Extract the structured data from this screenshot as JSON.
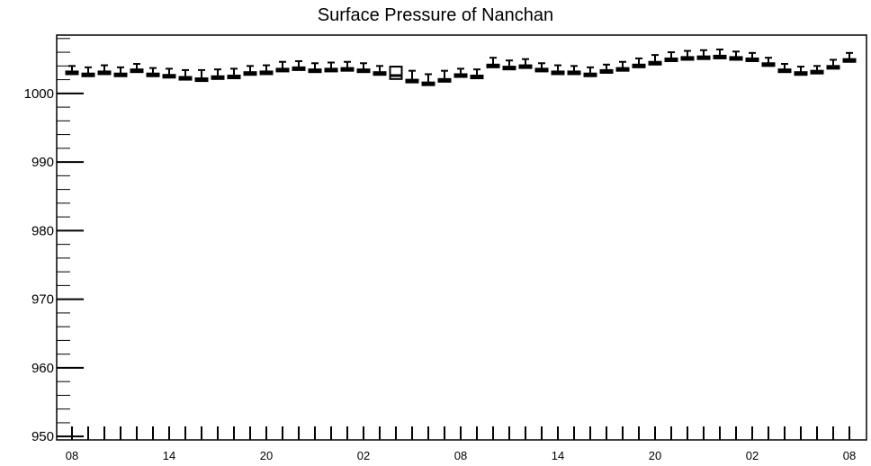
{
  "chart_data": {
    "type": "box",
    "title": "Surface Pressure of Nanchan",
    "xlabel": "",
    "ylabel": "",
    "ylim": [
      949.5,
      1008.5
    ],
    "yticks": [
      950,
      960,
      970,
      980,
      990,
      1000
    ],
    "x_tick_labels": [
      "08",
      "14",
      "20",
      "02",
      "08",
      "14",
      "20",
      "02",
      "08"
    ],
    "x_tick_label_index": [
      0,
      6,
      12,
      18,
      24,
      30,
      36,
      42,
      48
    ],
    "x_count": 49,
    "grid": false,
    "series": [
      {
        "values": [
          1003.0,
          1002.7,
          1003.0,
          1002.7,
          1003.3,
          1002.7,
          1002.5,
          1002.2,
          1002.0,
          1002.3,
          1002.4,
          1002.9,
          1003.0,
          1003.4,
          1003.6,
          1003.3,
          1003.4,
          1003.5,
          1003.3,
          1002.9,
          1002.6,
          1001.8,
          1001.4,
          1001.9,
          1002.6,
          1002.4,
          1004.0,
          1003.7,
          1003.9,
          1003.4,
          1003.0,
          1003.0,
          1002.7,
          1003.2,
          1003.5,
          1004.0,
          1004.4,
          1004.9,
          1005.1,
          1005.2,
          1005.3,
          1005.1,
          1004.9,
          1004.2,
          1003.3,
          1002.9,
          1003.1,
          1003.8,
          1004.8
        ],
        "box_low": [
          1002.8,
          1002.5,
          1002.8,
          1002.5,
          1003.1,
          1002.5,
          1002.3,
          1002.0,
          1001.8,
          1002.1,
          1002.2,
          1002.7,
          1002.8,
          1003.2,
          1003.4,
          1003.1,
          1003.2,
          1003.3,
          1003.1,
          1002.7,
          1002.1,
          1001.6,
          1001.2,
          1001.7,
          1002.4,
          1002.2,
          1003.8,
          1003.5,
          1003.7,
          1003.2,
          1002.8,
          1002.8,
          1002.5,
          1003.0,
          1003.3,
          1003.8,
          1004.2,
          1004.7,
          1004.9,
          1005.0,
          1005.1,
          1004.9,
          1004.7,
          1004.0,
          1003.1,
          1002.7,
          1002.9,
          1003.6,
          1004.6
        ],
        "box_high": [
          1003.2,
          1002.9,
          1003.2,
          1002.9,
          1003.5,
          1002.9,
          1002.7,
          1002.4,
          1002.2,
          1002.5,
          1002.6,
          1003.1,
          1003.2,
          1003.6,
          1003.8,
          1003.5,
          1003.6,
          1003.7,
          1003.5,
          1003.1,
          1003.9,
          1002.0,
          1001.6,
          1002.1,
          1002.8,
          1002.6,
          1004.2,
          1003.9,
          1004.1,
          1003.6,
          1003.2,
          1003.2,
          1002.9,
          1003.4,
          1003.7,
          1004.2,
          1004.6,
          1005.1,
          1005.3,
          1005.4,
          1005.5,
          1005.3,
          1005.1,
          1004.4,
          1003.5,
          1003.1,
          1003.3,
          1004.0,
          1005.0
        ],
        "whisker_low": [
          1002.8,
          1002.5,
          1002.8,
          1002.5,
          1003.1,
          1002.5,
          1002.3,
          1002.0,
          1001.8,
          1002.1,
          1002.2,
          1002.7,
          1002.8,
          1003.2,
          1003.4,
          1003.1,
          1003.2,
          1003.3,
          1003.1,
          1002.7,
          1002.1,
          1001.6,
          1001.2,
          1001.7,
          1002.4,
          1002.2,
          1003.8,
          1003.5,
          1003.7,
          1003.2,
          1002.8,
          1002.8,
          1002.5,
          1003.0,
          1003.3,
          1003.8,
          1004.2,
          1004.7,
          1004.9,
          1005.0,
          1005.1,
          1004.9,
          1004.7,
          1004.0,
          1003.1,
          1002.7,
          1002.9,
          1003.6,
          1004.6
        ],
        "whisker_high": [
          1004.0,
          1003.8,
          1004.1,
          1003.8,
          1004.3,
          1003.7,
          1003.6,
          1003.4,
          1003.4,
          1003.5,
          1003.6,
          1004.0,
          1004.1,
          1004.6,
          1004.7,
          1004.4,
          1004.5,
          1004.6,
          1004.4,
          1004.0,
          1003.9,
          1003.3,
          1002.8,
          1003.3,
          1003.6,
          1003.5,
          1005.2,
          1004.8,
          1005.0,
          1004.4,
          1004.1,
          1004.0,
          1003.8,
          1004.2,
          1004.6,
          1005.1,
          1005.6,
          1006.0,
          1006.2,
          1006.3,
          1006.4,
          1006.1,
          1005.9,
          1005.2,
          1004.3,
          1003.9,
          1004.0,
          1004.9,
          1005.9
        ]
      }
    ]
  }
}
